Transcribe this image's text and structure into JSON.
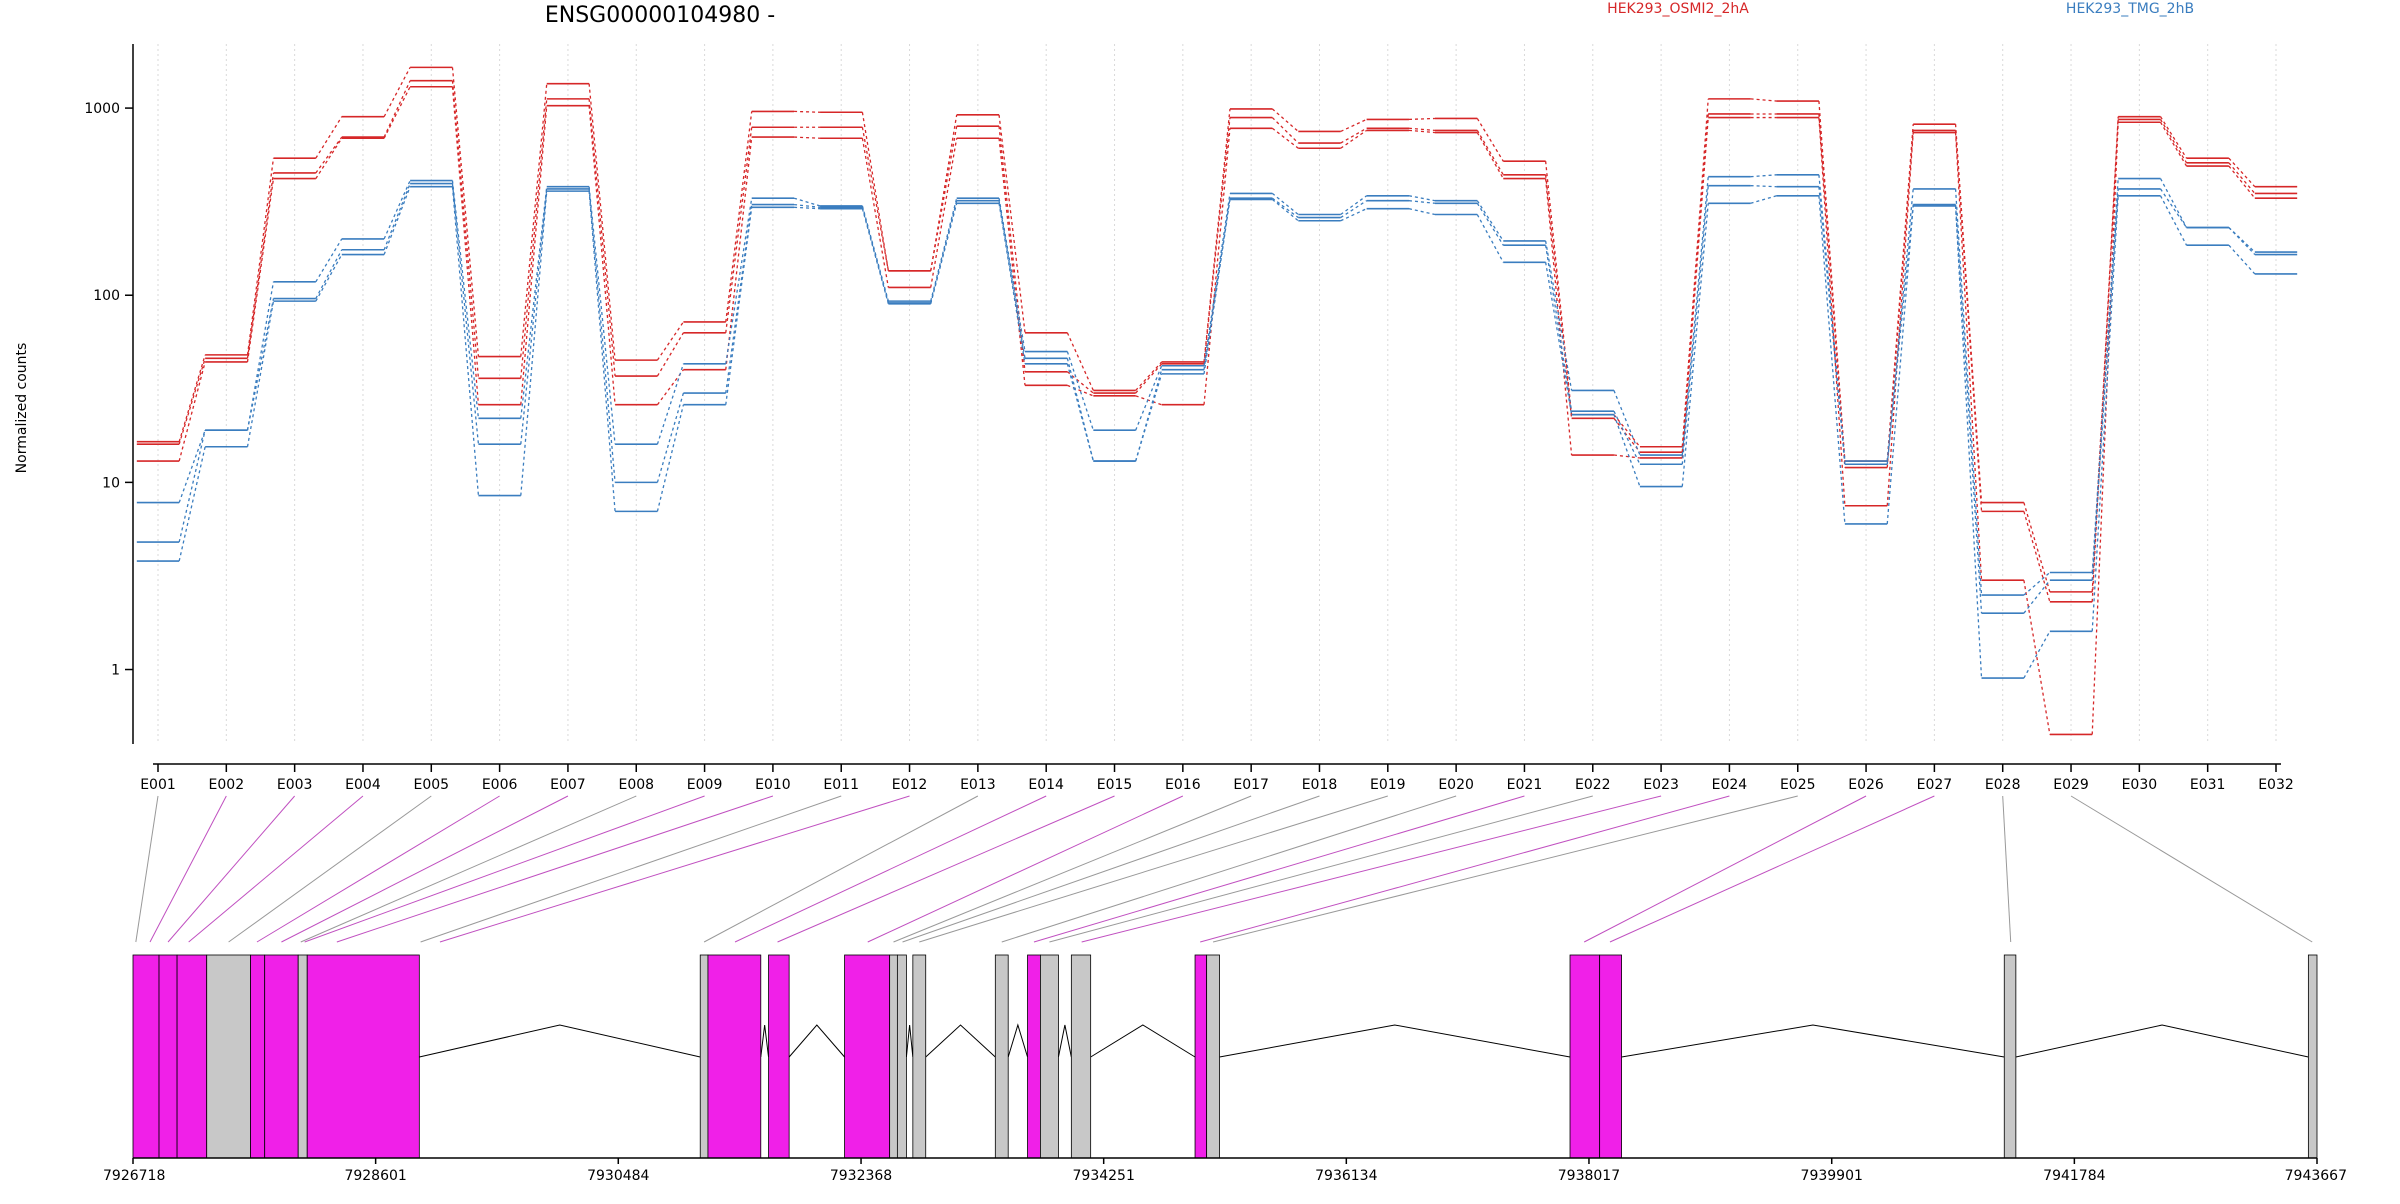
{
  "title": "ENSG00000104980 -",
  "legend": [
    {
      "label": "HEK293_OSMI2_2hA",
      "color": "#d62728"
    },
    {
      "label": "HEK293_TMG_2hB",
      "color": "#3a7dbf"
    }
  ],
  "colors": {
    "osmi_series": "#d62728",
    "tmg_series": "#3a7dbf",
    "exon_highlight": "#f020e8",
    "exon_plain": "#c8c8c8",
    "connector_highlight": "#c050c0",
    "connector_plain": "#999999"
  },
  "chart_data": {
    "type": "line",
    "title": "ENSG00000104980 -",
    "ylabel": "Normalized counts",
    "xlabel": "",
    "yscale": "log",
    "ylim": [
      0.4,
      2200
    ],
    "yticks": [
      1,
      10,
      100,
      1000
    ],
    "ytick_labels": [
      "1",
      "10",
      "100",
      "1000"
    ],
    "grid": true,
    "legend_position": "top",
    "categories": [
      "E001",
      "E002",
      "E003",
      "E004",
      "E005",
      "E006",
      "E007",
      "E008",
      "E009",
      "E010",
      "E011",
      "E012",
      "E013",
      "E014",
      "E015",
      "E016",
      "E017",
      "E018",
      "E019",
      "E020",
      "E021",
      "E022",
      "E023",
      "E024",
      "E025",
      "E026",
      "E027",
      "E028",
      "E029",
      "E030",
      "E031",
      "E032"
    ],
    "series": [
      {
        "name": "HEK293_OSMI2_2hA",
        "group": "HEK293_OSMI2_2hA",
        "color": "#d62728",
        "values": [
          16.5,
          48,
          540,
          900,
          1650,
          47,
          1350,
          45,
          72,
          960,
          950,
          135,
          920,
          63,
          31,
          44,
          990,
          750,
          870,
          880,
          520,
          23,
          15.5,
          1120,
          1090,
          13,
          820,
          7.8,
          2.6,
          900,
          540,
          380
        ]
      },
      {
        "name": "HEK293_OSMI2_2hA",
        "group": "HEK293_OSMI2_2hA",
        "color": "#d62728",
        "values": [
          16,
          46,
          450,
          700,
          1400,
          36,
          1120,
          37,
          63,
          790,
          790,
          135,
          800,
          39,
          30,
          43,
          890,
          650,
          780,
          760,
          440,
          22,
          14.5,
          930,
          930,
          12,
          760,
          7,
          2.3,
          870,
          510,
          350
        ]
      },
      {
        "name": "HEK293_OSMI2_2hA",
        "group": "HEK293_OSMI2_2hA",
        "color": "#d62728",
        "values": [
          13,
          44,
          420,
          690,
          1300,
          26,
          1030,
          26,
          40,
          700,
          690,
          110,
          690,
          33,
          29,
          26,
          780,
          610,
          760,
          740,
          420,
          14,
          13.5,
          890,
          890,
          7.5,
          740,
          3,
          0.45,
          840,
          490,
          330
        ]
      },
      {
        "name": "HEK293_TMG_2hB",
        "group": "HEK293_TMG_2hB",
        "color": "#3a7dbf",
        "values": [
          7.8,
          19,
          118,
          200,
          410,
          22,
          380,
          16,
          43,
          330,
          300,
          93,
          330,
          50,
          19,
          42,
          350,
          270,
          340,
          320,
          195,
          31,
          14,
          430,
          440,
          13,
          370,
          2.5,
          3.3,
          420,
          230,
          170
        ]
      },
      {
        "name": "HEK293_TMG_2hB",
        "group": "HEK293_TMG_2hB",
        "color": "#3a7dbf",
        "values": [
          4.8,
          19,
          96,
          175,
          395,
          16,
          370,
          10,
          30,
          305,
          295,
          91,
          320,
          46,
          13,
          40,
          330,
          260,
          320,
          310,
          185,
          24,
          12.5,
          385,
          380,
          12.5,
          305,
          2,
          3.0,
          370,
          230,
          165
        ]
      },
      {
        "name": "HEK293_TMG_2hB",
        "group": "HEK293_TMG_2hB",
        "color": "#3a7dbf",
        "values": [
          3.8,
          15.5,
          93,
          165,
          380,
          8.5,
          360,
          7,
          26,
          295,
          290,
          90,
          310,
          43,
          13,
          38,
          325,
          250,
          290,
          270,
          150,
          23,
          9.5,
          310,
          340,
          6,
          300,
          0.9,
          1.6,
          340,
          185,
          130
        ]
      }
    ],
    "gene_model": {
      "coordinate_ticks": [
        7926718,
        7928601,
        7930484,
        7932368,
        7934251,
        7936134,
        7938017,
        7939901,
        7941784,
        7943667
      ],
      "coordinate_tick_labels": [
        "7926718",
        "7928601",
        "7930484",
        "7932368",
        "7934251",
        "7936134",
        "7938017",
        "7939901",
        "7941784",
        "7943667"
      ],
      "exons": [
        {
          "start": 7926718,
          "end": 7926920,
          "highlight": true
        },
        {
          "start": 7926920,
          "end": 7927060,
          "highlight": true
        },
        {
          "start": 7927060,
          "end": 7927290,
          "highlight": true
        },
        {
          "start": 7927290,
          "end": 7927630,
          "highlight": false
        },
        {
          "start": 7927630,
          "end": 7927740,
          "highlight": true
        },
        {
          "start": 7927740,
          "end": 7928000,
          "highlight": true
        },
        {
          "start": 7928000,
          "end": 7928070,
          "highlight": false
        },
        {
          "start": 7928070,
          "end": 7928940,
          "highlight": true
        },
        {
          "start": 7931120,
          "end": 7931180,
          "highlight": false
        },
        {
          "start": 7931180,
          "end": 7931590,
          "highlight": true
        },
        {
          "start": 7931650,
          "end": 7931810,
          "highlight": true
        },
        {
          "start": 7932240,
          "end": 7932590,
          "highlight": true
        },
        {
          "start": 7932590,
          "end": 7932650,
          "highlight": false
        },
        {
          "start": 7932650,
          "end": 7932720,
          "highlight": false
        },
        {
          "start": 7932770,
          "end": 7932870,
          "highlight": false
        },
        {
          "start": 7933410,
          "end": 7933510,
          "highlight": false
        },
        {
          "start": 7933660,
          "end": 7933760,
          "highlight": true
        },
        {
          "start": 7933760,
          "end": 7933900,
          "highlight": false
        },
        {
          "start": 7934000,
          "end": 7934150,
          "highlight": false
        },
        {
          "start": 7934960,
          "end": 7935050,
          "highlight": true
        },
        {
          "start": 7935050,
          "end": 7935150,
          "highlight": false
        },
        {
          "start": 7937870,
          "end": 7938100,
          "highlight": true
        },
        {
          "start": 7938100,
          "end": 7938270,
          "highlight": true
        },
        {
          "start": 7941240,
          "end": 7941330,
          "highlight": false
        },
        {
          "start": 7943600,
          "end": 7943667,
          "highlight": false
        }
      ],
      "connectors": [
        {
          "bin": "E001",
          "pos": 7926740,
          "highlight": false
        },
        {
          "bin": "E002",
          "pos": 7926850,
          "highlight": true
        },
        {
          "bin": "E003",
          "pos": 7926990,
          "highlight": true
        },
        {
          "bin": "E004",
          "pos": 7927150,
          "highlight": true
        },
        {
          "bin": "E005",
          "pos": 7927460,
          "highlight": false
        },
        {
          "bin": "E006",
          "pos": 7927680,
          "highlight": true
        },
        {
          "bin": "E007",
          "pos": 7927870,
          "highlight": true
        },
        {
          "bin": "E008",
          "pos": 7928020,
          "highlight": false
        },
        {
          "bin": "E009",
          "pos": 7928050,
          "highlight": true
        },
        {
          "bin": "E010",
          "pos": 7928300,
          "highlight": true
        },
        {
          "bin": "E011",
          "pos": 7928950,
          "highlight": false
        },
        {
          "bin": "E012",
          "pos": 7929100,
          "highlight": true
        },
        {
          "bin": "E013",
          "pos": 7931150,
          "highlight": false
        },
        {
          "bin": "E014",
          "pos": 7931390,
          "highlight": true
        },
        {
          "bin": "E015",
          "pos": 7931720,
          "highlight": true
        },
        {
          "bin": "E016",
          "pos": 7932420,
          "highlight": true
        },
        {
          "bin": "E017",
          "pos": 7932620,
          "highlight": false
        },
        {
          "bin": "E018",
          "pos": 7932690,
          "highlight": false
        },
        {
          "bin": "E019",
          "pos": 7932820,
          "highlight": false
        },
        {
          "bin": "E020",
          "pos": 7933460,
          "highlight": false
        },
        {
          "bin": "E021",
          "pos": 7933710,
          "highlight": true
        },
        {
          "bin": "E022",
          "pos": 7933830,
          "highlight": false
        },
        {
          "bin": "E023",
          "pos": 7934080,
          "highlight": true
        },
        {
          "bin": "E024",
          "pos": 7935000,
          "highlight": true
        },
        {
          "bin": "E025",
          "pos": 7935100,
          "highlight": false
        },
        {
          "bin": "E026",
          "pos": 7937980,
          "highlight": true
        },
        {
          "bin": "E027",
          "pos": 7938180,
          "highlight": true
        },
        {
          "bin": "E028",
          "pos": 7941290,
          "highlight": false
        },
        {
          "bin": "E029",
          "pos": 7943630,
          "highlight": false
        }
      ]
    }
  }
}
